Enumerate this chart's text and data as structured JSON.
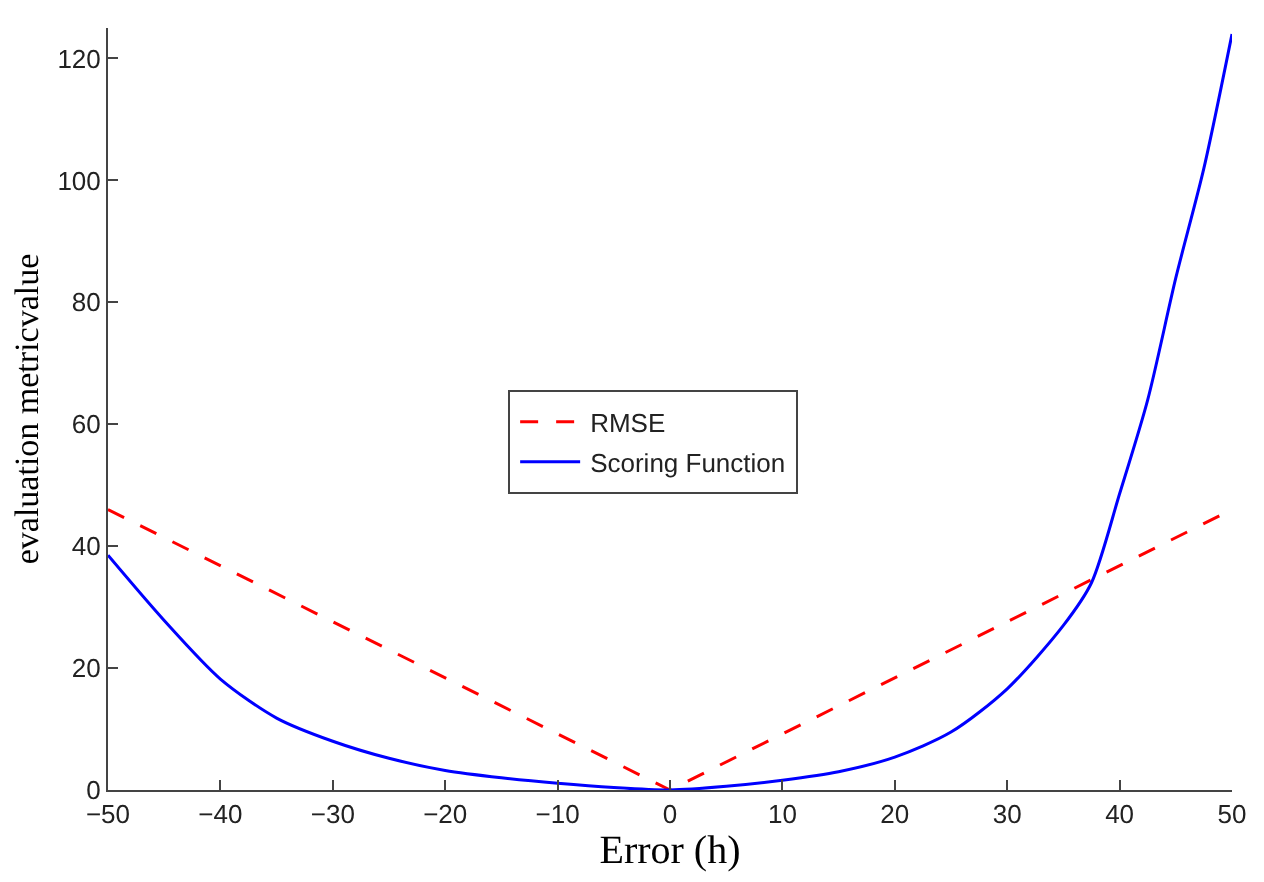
{
  "chart_data": {
    "type": "line",
    "xlabel": "Error (h)",
    "ylabel": "evaluation metricvalue",
    "xlim": [
      -50,
      50
    ],
    "ylim": [
      0,
      125
    ],
    "xticks": [
      -50,
      -40,
      -30,
      -20,
      -10,
      0,
      10,
      20,
      30,
      40,
      50
    ],
    "yticks": [
      0,
      20,
      40,
      60,
      80,
      100,
      120
    ],
    "grid": false,
    "legend": "center",
    "marker": "none",
    "series": [
      {
        "name": "RMSE",
        "color": "#ff0000",
        "line_style": "dashed",
        "x": [
          -50,
          0,
          50
        ],
        "values": [
          46,
          0,
          46
        ]
      },
      {
        "name": "Scoring Function",
        "color": "#0000ff",
        "line_style": "solid",
        "x": [
          -50,
          -45,
          -40,
          -35,
          -30,
          -25,
          -20,
          -15,
          -10,
          -5,
          0,
          5,
          10,
          15,
          20,
          25,
          30,
          35,
          37.5,
          40,
          42.5,
          45,
          47.5,
          50
        ],
        "values": [
          38.5,
          27.8,
          18.2,
          11.8,
          8,
          5.2,
          3.2,
          2,
          1.1,
          0.4,
          0,
          0.6,
          1.6,
          3,
          5.4,
          9.5,
          16.6,
          27,
          34,
          48.6,
          64,
          84,
          102,
          124
        ]
      }
    ]
  }
}
